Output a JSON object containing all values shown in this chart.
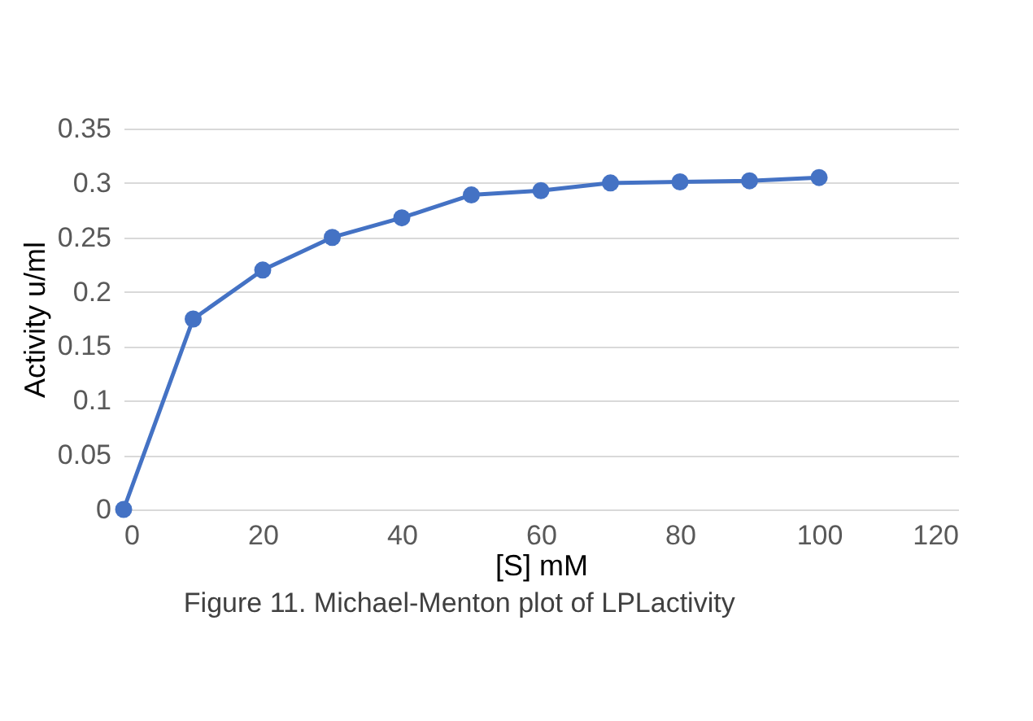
{
  "chart_data": {
    "type": "line",
    "xlabel": "[S] mM",
    "ylabel": "Activity u/ml",
    "annotations": [
      "Figure 11. Michael-Menton plot of LPLactivity"
    ],
    "x": [
      0,
      10,
      20,
      30,
      40,
      50,
      60,
      70,
      80,
      90,
      100
    ],
    "series": [
      {
        "color": "#4472c4",
        "values": [
          0,
          0.175,
          0.22,
          0.25,
          0.268,
          0.289,
          0.293,
          0.3,
          0.301,
          0.302,
          0.305
        ]
      }
    ],
    "xlim": [
      0,
      120
    ],
    "xticks": [
      0,
      20,
      40,
      60,
      80,
      100,
      120
    ],
    "ylim": [
      0,
      0.35
    ],
    "yticks": [
      0,
      0.05,
      0.1,
      0.15,
      0.2,
      0.25,
      0.3,
      0.35
    ],
    "grid": "y",
    "marker": "circle",
    "line_style": "solid"
  }
}
